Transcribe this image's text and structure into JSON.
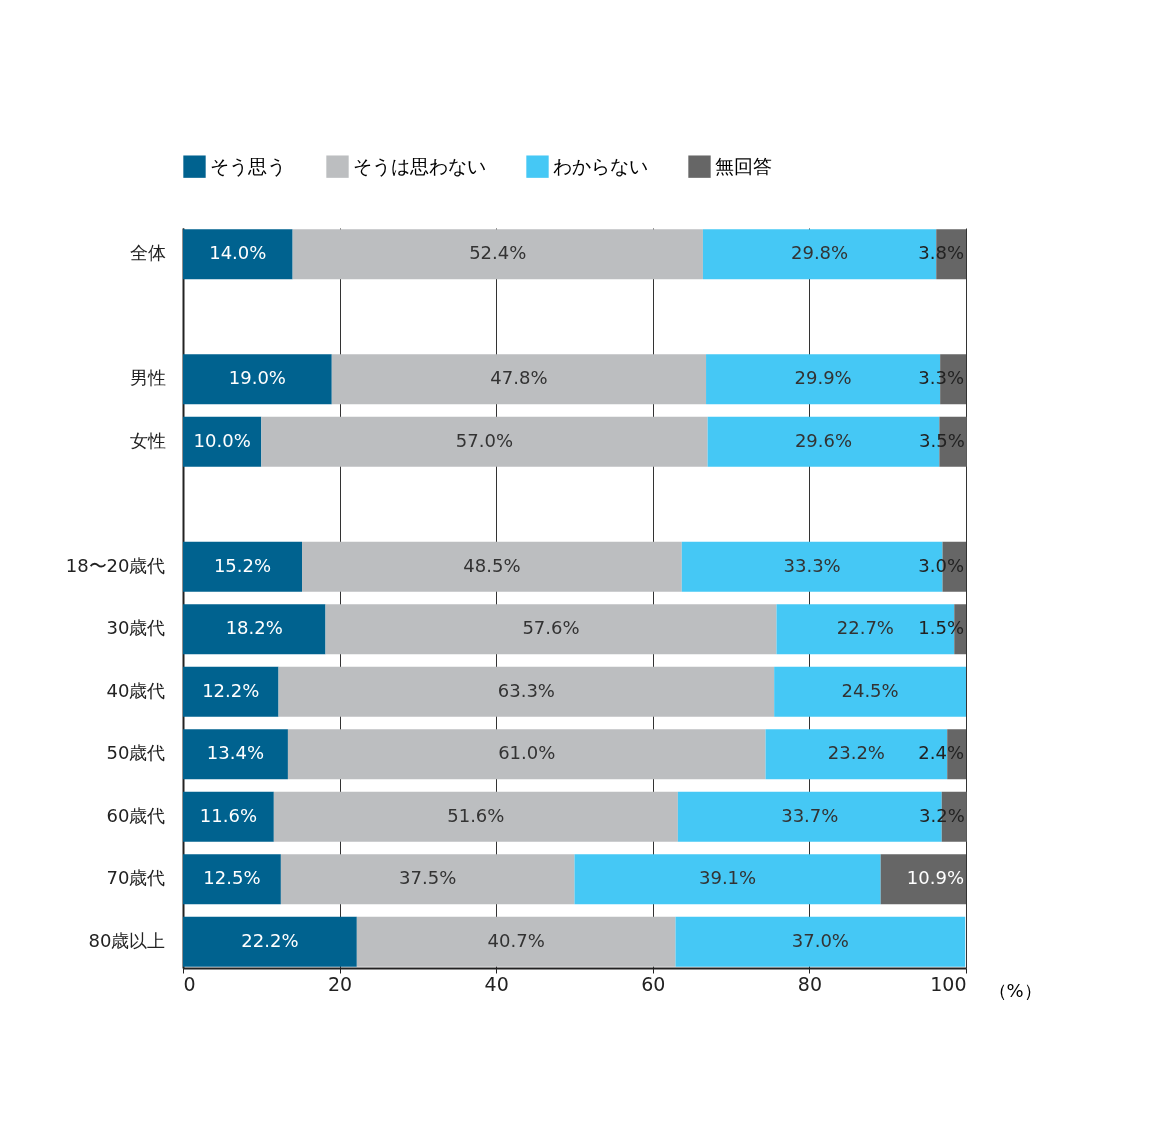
{
  "chart_data": {
    "type": "bar",
    "orientation": "horizontal",
    "stacked": true,
    "xlabel": "（%）",
    "categories": [
      "全体",
      null,
      "男性",
      "女性",
      null,
      "18〜20歳代",
      "30歳代",
      "40歳代",
      "50歳代",
      "60歳代",
      "70歳代",
      "80歳以上"
    ],
    "series": [
      {
        "name": "そう思う",
        "color": "#00628f",
        "values": [
          14.0,
          null,
          19.0,
          10.0,
          null,
          15.2,
          18.2,
          12.2,
          13.4,
          11.6,
          12.5,
          22.2
        ],
        "value_labels": [
          "14.0%",
          null,
          "19.0%",
          "10.0%",
          null,
          "15.2%",
          "18.2%",
          "12.2%",
          "13.4%",
          "11.6%",
          "12.5%",
          "22.2%"
        ]
      },
      {
        "name": "そうは思わない",
        "color": "#bcbec0",
        "values": [
          52.4,
          null,
          47.8,
          57.0,
          null,
          48.5,
          57.6,
          63.3,
          61.0,
          51.6,
          37.5,
          40.7
        ],
        "value_labels": [
          "52.4%",
          null,
          "47.8%",
          "57.0%",
          null,
          "48.5%",
          "57.6%",
          "63.3%",
          "61.0%",
          "51.6%",
          "37.5%",
          "40.7%"
        ]
      },
      {
        "name": "わからない",
        "color": "#45c8f5",
        "values": [
          29.8,
          null,
          29.9,
          29.6,
          null,
          33.3,
          22.7,
          24.5,
          23.2,
          33.7,
          39.1,
          37.0
        ],
        "value_labels": [
          "29.8%",
          null,
          "29.9%",
          "29.6%",
          null,
          "33.3%",
          "22.7%",
          "24.5%",
          "23.2%",
          "33.7%",
          "39.1%",
          "37.0%"
        ]
      },
      {
        "name": "無回答",
        "color": "#666666",
        "values": [
          3.8,
          null,
          3.3,
          3.5,
          null,
          3.0,
          1.5,
          null,
          2.4,
          3.2,
          10.9,
          null
        ],
        "value_labels": [
          "3.8%",
          null,
          "3.3%",
          "3.5%",
          null,
          "3.0%",
          "1.5%",
          null,
          "2.4%",
          "3.2%",
          "10.9%",
          null
        ]
      }
    ],
    "xlim": [
      0,
      100
    ],
    "xticks": [
      0,
      20,
      40,
      60,
      80,
      100
    ],
    "grid": "x",
    "legend": "top"
  }
}
